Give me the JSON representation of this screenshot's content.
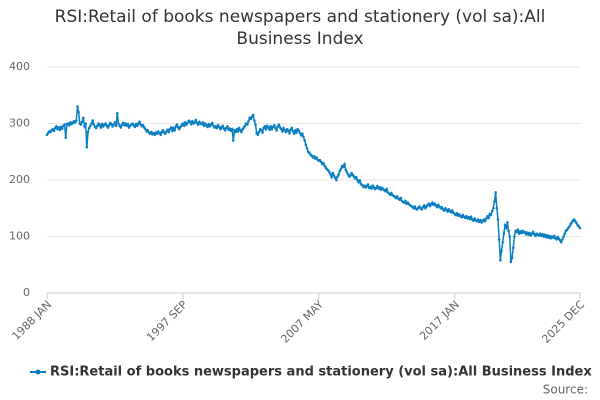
{
  "chart_data": {
    "type": "line",
    "title": "RSI:Retail of books newspapers and stationery (vol sa):All Business Index",
    "source": "Source:",
    "categories": [
      "1988 JAN",
      null,
      null,
      null,
      null,
      null,
      null,
      null,
      null,
      null,
      null,
      null,
      null,
      null,
      null,
      null,
      null,
      null,
      null,
      null,
      null,
      null,
      null,
      null,
      null,
      null,
      null,
      null,
      null,
      null,
      null,
      null,
      null,
      null,
      null,
      null,
      null,
      null,
      null,
      null,
      null,
      null,
      null,
      null,
      null,
      null,
      null,
      null,
      null,
      null,
      null,
      null,
      null,
      null,
      null,
      null,
      null,
      null,
      null,
      null,
      null,
      null,
      null,
      null,
      null,
      null,
      null,
      null,
      null,
      null,
      null,
      null,
      null,
      null,
      null,
      null,
      null,
      null,
      null,
      null,
      null,
      null,
      null,
      null,
      null,
      null,
      null,
      null,
      null,
      null,
      null,
      null,
      null,
      null,
      null,
      null,
      null,
      null,
      null,
      null,
      null,
      null,
      null,
      null,
      null,
      null,
      null,
      null,
      null,
      null,
      null,
      null,
      null,
      null,
      null,
      null,
      "1997 SEP",
      null,
      null,
      null,
      null,
      null,
      null,
      null,
      null,
      null,
      null,
      null,
      null,
      null,
      null,
      null,
      null,
      null,
      null,
      null,
      null,
      null,
      null,
      null,
      null,
      null,
      null,
      null,
      null,
      null,
      null,
      null,
      null,
      null,
      null,
      null,
      null,
      null,
      null,
      null,
      null,
      null,
      null,
      null,
      null,
      null,
      null,
      null,
      null,
      null,
      null,
      null,
      null,
      null,
      null,
      null,
      null,
      null,
      null,
      null,
      null,
      null,
      null,
      null,
      null,
      null,
      null,
      null,
      null,
      null,
      null,
      null,
      null,
      null,
      null,
      null,
      null,
      null,
      null,
      null,
      null,
      null,
      null,
      null,
      null,
      null,
      null,
      null,
      null,
      null,
      null,
      null,
      null,
      null,
      null,
      null,
      null,
      null,
      null,
      null,
      null,
      null,
      null,
      null,
      null,
      null,
      null,
      null,
      null,
      null,
      null,
      null,
      null,
      null,
      null,
      null,
      "2007 MAY",
      null,
      null,
      null,
      null,
      null,
      null,
      null,
      null,
      null,
      null,
      null,
      null,
      null,
      null,
      null,
      null,
      null,
      null,
      null,
      null,
      null,
      null,
      null,
      null,
      null,
      null,
      null,
      null,
      null,
      null,
      null,
      null,
      null,
      null,
      null,
      null,
      null,
      null,
      null,
      null,
      null,
      null,
      null,
      null,
      null,
      null,
      null,
      null,
      null,
      null,
      null,
      null,
      null,
      null,
      null,
      null,
      null,
      null,
      null,
      null,
      null,
      null,
      null,
      null,
      null,
      null,
      null,
      null,
      null,
      null,
      null,
      null,
      null,
      null,
      null,
      null,
      null,
      null,
      null,
      null,
      null,
      null,
      null,
      null,
      null,
      null,
      null,
      null,
      null,
      null,
      null,
      null,
      null,
      null,
      null,
      null,
      null,
      null,
      null,
      null,
      null,
      null,
      null,
      null,
      null,
      null,
      null,
      null,
      null,
      null,
      null,
      null,
      null,
      null,
      null,
      "2017 JAN",
      null,
      null,
      null,
      null,
      null,
      null,
      null,
      null,
      null,
      null,
      null,
      null,
      null,
      null,
      null,
      null,
      null,
      null,
      null,
      null,
      null,
      null,
      null,
      null,
      null,
      null,
      null,
      null,
      null,
      null,
      null,
      null,
      null,
      null,
      null,
      null,
      null,
      null,
      null,
      null,
      null,
      null,
      null,
      null,
      null,
      null,
      null,
      null,
      null,
      null,
      null,
      null,
      null,
      null,
      null,
      null,
      null,
      null,
      null,
      null,
      null,
      null,
      null,
      null,
      null,
      null,
      null,
      null,
      null,
      null,
      null,
      null,
      null,
      null,
      null,
      null,
      null,
      null,
      null,
      null,
      null,
      null,
      null,
      null,
      null,
      null,
      null,
      null,
      null,
      null,
      null,
      null,
      null,
      null,
      null,
      null,
      null,
      null,
      null,
      null,
      null,
      null,
      null,
      null,
      null,
      null,
      "2025 DEC"
    ],
    "series": [
      {
        "name": "RSI:Retail of books newspapers and stationery (vol sa):All Business Index",
        "color": "#0a7fc2",
        "values": [
          280,
          283,
          286,
          285,
          288,
          290,
          287,
          292,
          295,
          290,
          293,
          289,
          294,
          291,
          296,
          298,
          275,
          299,
          300,
          297,
          302,
          299,
          301,
          304,
          302,
          305,
          330,
          320,
          300,
          298,
          303,
          310,
          295,
          300,
          258,
          285,
          292,
          296,
          300,
          305,
          298,
          294,
          292,
          296,
          300,
          297,
          293,
          299,
          295,
          298,
          300,
          296,
          293,
          297,
          301,
          299,
          295,
          298,
          302,
          296,
          318,
          300,
          296,
          293,
          298,
          301,
          297,
          300,
          296,
          299,
          293,
          296,
          298,
          300,
          297,
          294,
          299,
          296,
          300,
          303,
          298,
          295,
          297,
          293,
          290,
          286,
          288,
          284,
          282,
          285,
          281,
          283,
          280,
          284,
          282,
          286,
          283,
          280,
          285,
          288,
          284,
          282,
          286,
          289,
          285,
          290,
          293,
          287,
          292,
          288,
          295,
          298,
          293,
          290,
          294,
          297,
          300,
          296,
          302,
          298,
          301,
          305,
          303,
          299,
          304,
          300,
          302,
          306,
          301,
          298,
          303,
          300,
          299,
          302,
          296,
          300,
          297,
          294,
          299,
          295,
          298,
          301,
          296,
          293,
          295,
          292,
          297,
          294,
          290,
          293,
          296,
          291,
          288,
          292,
          295,
          289,
          291,
          287,
          290,
          270,
          288,
          285,
          290,
          286,
          292,
          288,
          285,
          290,
          293,
          296,
          300,
          298,
          304,
          310,
          308,
          312,
          315,
          305,
          298,
          283,
          280,
          285,
          290,
          288,
          284,
          292,
          295,
          290,
          296,
          293,
          289,
          295,
          290,
          294,
          297,
          292,
          288,
          295,
          298,
          293,
          290,
          286,
          292,
          288,
          285,
          290,
          287,
          283,
          289,
          292,
          286,
          282,
          288,
          284,
          290,
          287,
          283,
          279,
          282,
          276,
          270,
          262,
          256,
          250,
          248,
          245,
          243,
          240,
          242,
          238,
          240,
          236,
          234,
          235,
          232,
          228,
          230,
          225,
          222,
          219,
          217,
          214,
          210,
          205,
          212,
          208,
          204,
          200,
          206,
          210,
          216,
          220,
          225,
          223,
          228,
          218,
          214,
          210,
          206,
          208,
          212,
          209,
          206,
          203,
          205,
          200,
          196,
          199,
          193,
          191,
          188,
          190,
          187,
          189,
          192,
          186,
          188,
          185,
          190,
          187,
          184,
          186,
          189,
          185,
          187,
          183,
          186,
          184,
          182,
          180,
          184,
          178,
          176,
          174,
          177,
          173,
          172,
          170,
          168,
          171,
          167,
          165,
          168,
          163,
          161,
          160,
          163,
          158,
          160,
          157,
          155,
          154,
          152,
          150,
          153,
          149,
          148,
          151,
          153,
          150,
          148,
          152,
          155,
          150,
          153,
          156,
          158,
          154,
          157,
          160,
          156,
          158,
          155,
          152,
          156,
          153,
          150,
          152,
          148,
          146,
          150,
          147,
          144,
          148,
          145,
          143,
          146,
          142,
          140,
          138,
          141,
          137,
          139,
          136,
          134,
          138,
          135,
          133,
          136,
          132,
          134,
          131,
          135,
          130,
          128,
          132,
          129,
          127,
          130,
          126,
          129,
          125,
          128,
          130,
          127,
          132,
          136,
          133,
          140,
          138,
          145,
          150,
          162,
          178,
          150,
          130,
          95,
          58,
          75,
          90,
          105,
          120,
          115,
          125,
          110,
          100,
          55,
          62,
          80,
          100,
          110,
          108,
          112,
          105,
          109,
          106,
          110,
          107,
          108,
          104,
          107,
          103,
          106,
          102,
          105,
          108,
          104,
          101,
          105,
          103,
          102,
          105,
          101,
          104,
          100,
          103,
          99,
          102,
          98,
          101,
          97,
          100,
          98,
          101,
          97,
          95,
          99,
          96,
          93,
          90,
          95,
          100,
          105,
          110,
          112,
          115,
          118,
          122,
          125,
          128,
          130,
          127,
          124,
          120,
          118,
          115
        ]
      }
    ],
    "ylim": [
      0,
      400
    ],
    "yticks": [
      0,
      100,
      200,
      300,
      400
    ],
    "grid": true,
    "legend": "bottom"
  }
}
